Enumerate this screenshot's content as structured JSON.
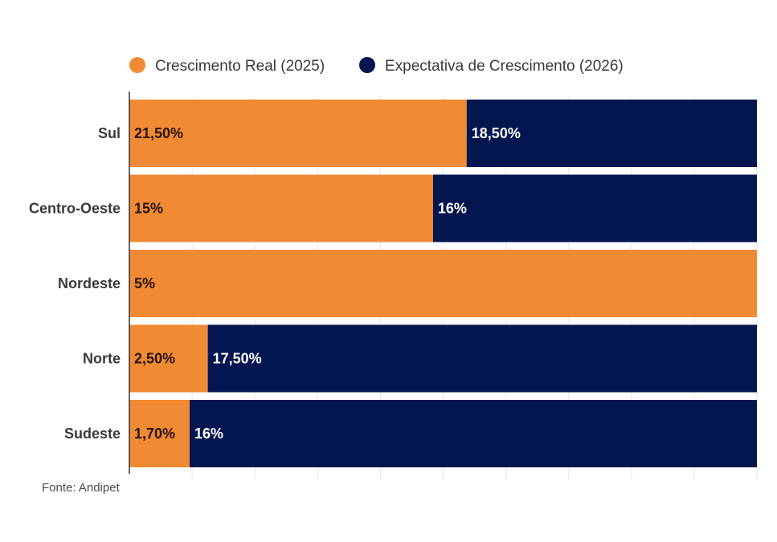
{
  "chart_data": {
    "type": "bar",
    "orientation": "horizontal",
    "stacking": "percent",
    "categories": [
      "Sul",
      "Centro-Oeste",
      "Nordeste",
      "Norte",
      "Sudeste"
    ],
    "series": [
      {
        "name": "Crescimento Real (2025)",
        "color": "#F08A34",
        "label_color": "#2a1208",
        "values": [
          21.5,
          15,
          5,
          2.5,
          1.7
        ],
        "labels": [
          "21,50%",
          "15%",
          "5%",
          "2,50%",
          "1,70%"
        ]
      },
      {
        "name": "Expectativa de Crescimento (2026)",
        "color": "#031650",
        "label_color": "#ffffff",
        "values": [
          18.5,
          16,
          0,
          17.5,
          16
        ],
        "labels": [
          "18,50%",
          "16%",
          "",
          "17,50%",
          "16%"
        ]
      }
    ],
    "title": "",
    "xlabel": "",
    "ylabel": "",
    "xlim": [
      0,
      100
    ],
    "grid": true,
    "legend_position": "top-center",
    "source": "Fonte: Andipet"
  }
}
